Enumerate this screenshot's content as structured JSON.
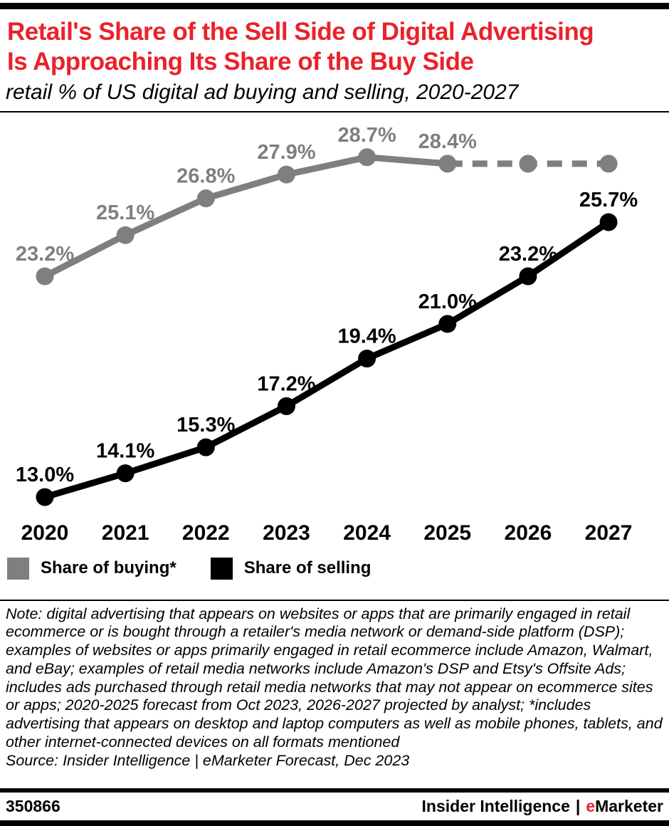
{
  "theme": {
    "red": "#e9222b",
    "gray": "#7f7f7f",
    "black": "#000000"
  },
  "header": {
    "title_lines": [
      "Retail's Share of the Sell Side of Digital Advertising",
      "Is Approaching Its Share of the Buy Side"
    ],
    "subtitle": "retail % of US digital ad buying and selling, 2020-2027"
  },
  "chart_data": {
    "type": "line",
    "title": "Retail's Share of the Sell Side of Digital Advertising Is Approaching Its Share of the Buy Side",
    "subtitle": "retail % of US digital ad buying and selling, 2020-2027",
    "x_labels": [
      "2020",
      "2021",
      "2022",
      "2023",
      "2024",
      "2025",
      "2026",
      "2027"
    ],
    "ylim": [
      11,
      31
    ],
    "grid": false,
    "legend_position": "bottom-left",
    "series": [
      {
        "name": "Share of buying*",
        "color": "#7f7f7f",
        "values": [
          23.2,
          25.1,
          26.8,
          27.9,
          28.7,
          28.4,
          28.4,
          28.4
        ],
        "data_labels": [
          "23.2%",
          "25.1%",
          "26.8%",
          "27.9%",
          "28.7%",
          "28.4%",
          null,
          null
        ],
        "dashed_from_index": 5
      },
      {
        "name": "Share of selling",
        "color": "#000000",
        "values": [
          13.0,
          14.1,
          15.3,
          17.2,
          19.4,
          21.0,
          23.2,
          25.7
        ],
        "data_labels": [
          "13.0%",
          "14.1%",
          "15.3%",
          "17.2%",
          "19.4%",
          "21.0%",
          "23.2%",
          "25.7%"
        ],
        "dashed_from_index": null
      }
    ]
  },
  "legend": {
    "items": [
      {
        "label": "Share of buying*",
        "color": "#7f7f7f"
      },
      {
        "label": "Share of selling",
        "color": "#000000"
      }
    ]
  },
  "note": {
    "text": "Note: digital advertising that appears on websites or apps that are primarily engaged in retail ecommerce or is bought through a retailer's media network or demand-side platform (DSP); examples of websites or apps primarily engaged in retail ecommerce include Amazon, Walmart, and eBay; examples of retail media networks include Amazon's DSP and Etsy's Offsite Ads; includes ads purchased through retail media networks that may not appear on ecommerce sites or apps; 2020-2025 forecast from Oct 2023, 2026-2027 projected by analyst; *includes advertising that appears on desktop and laptop computers as well as mobile phones, tablets, and other internet-connected devices on all formats mentioned",
    "source": "Source: Insider Intelligence | eMarketer Forecast, Dec 2023"
  },
  "footer": {
    "chart_id": "350866",
    "brand_prefix": "Insider Intelligence",
    "brand_separator": "|",
    "brand_emphasis": "e",
    "brand_suffix": "Marketer"
  }
}
